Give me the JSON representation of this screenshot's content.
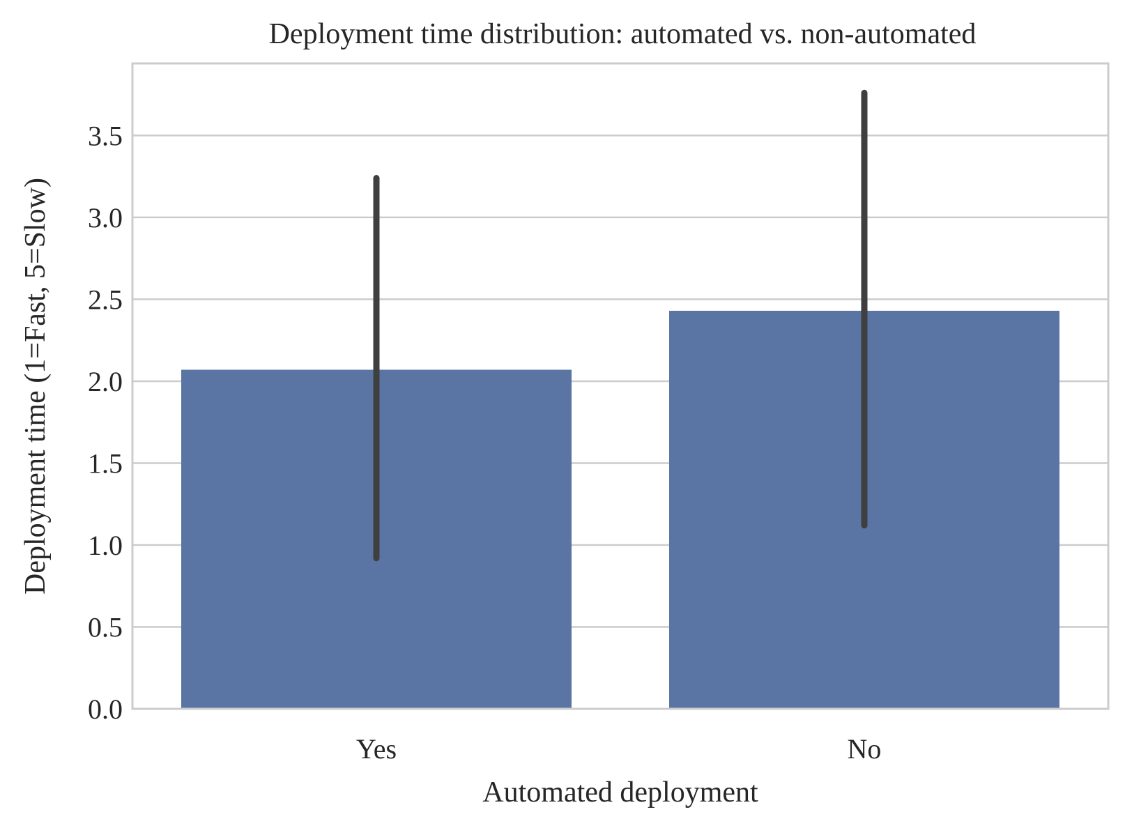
{
  "chart_data": {
    "type": "bar",
    "title": "Deployment time distribution: automated vs. non-automated",
    "xlabel": "Automated deployment",
    "ylabel": "Deployment time (1=Fast, 5=Slow)",
    "categories": [
      "Yes",
      "No"
    ],
    "values": [
      2.07,
      2.43
    ],
    "error_bars": [
      {
        "low": 0.92,
        "high": 3.24
      },
      {
        "low": 1.12,
        "high": 3.76
      }
    ],
    "ylim": [
      0,
      3.94
    ],
    "yticks": [
      0.0,
      0.5,
      1.0,
      1.5,
      2.0,
      2.5,
      3.0,
      3.5
    ],
    "ytick_labels": [
      "0.0",
      "0.5",
      "1.0",
      "1.5",
      "2.0",
      "2.5",
      "3.0",
      "3.5"
    ],
    "grid": "horizontal",
    "colors": {
      "bar": "#5a75a3",
      "error_bar": "#3f3f3f",
      "grid": "#cccccc",
      "frame": "#cccccc"
    }
  }
}
